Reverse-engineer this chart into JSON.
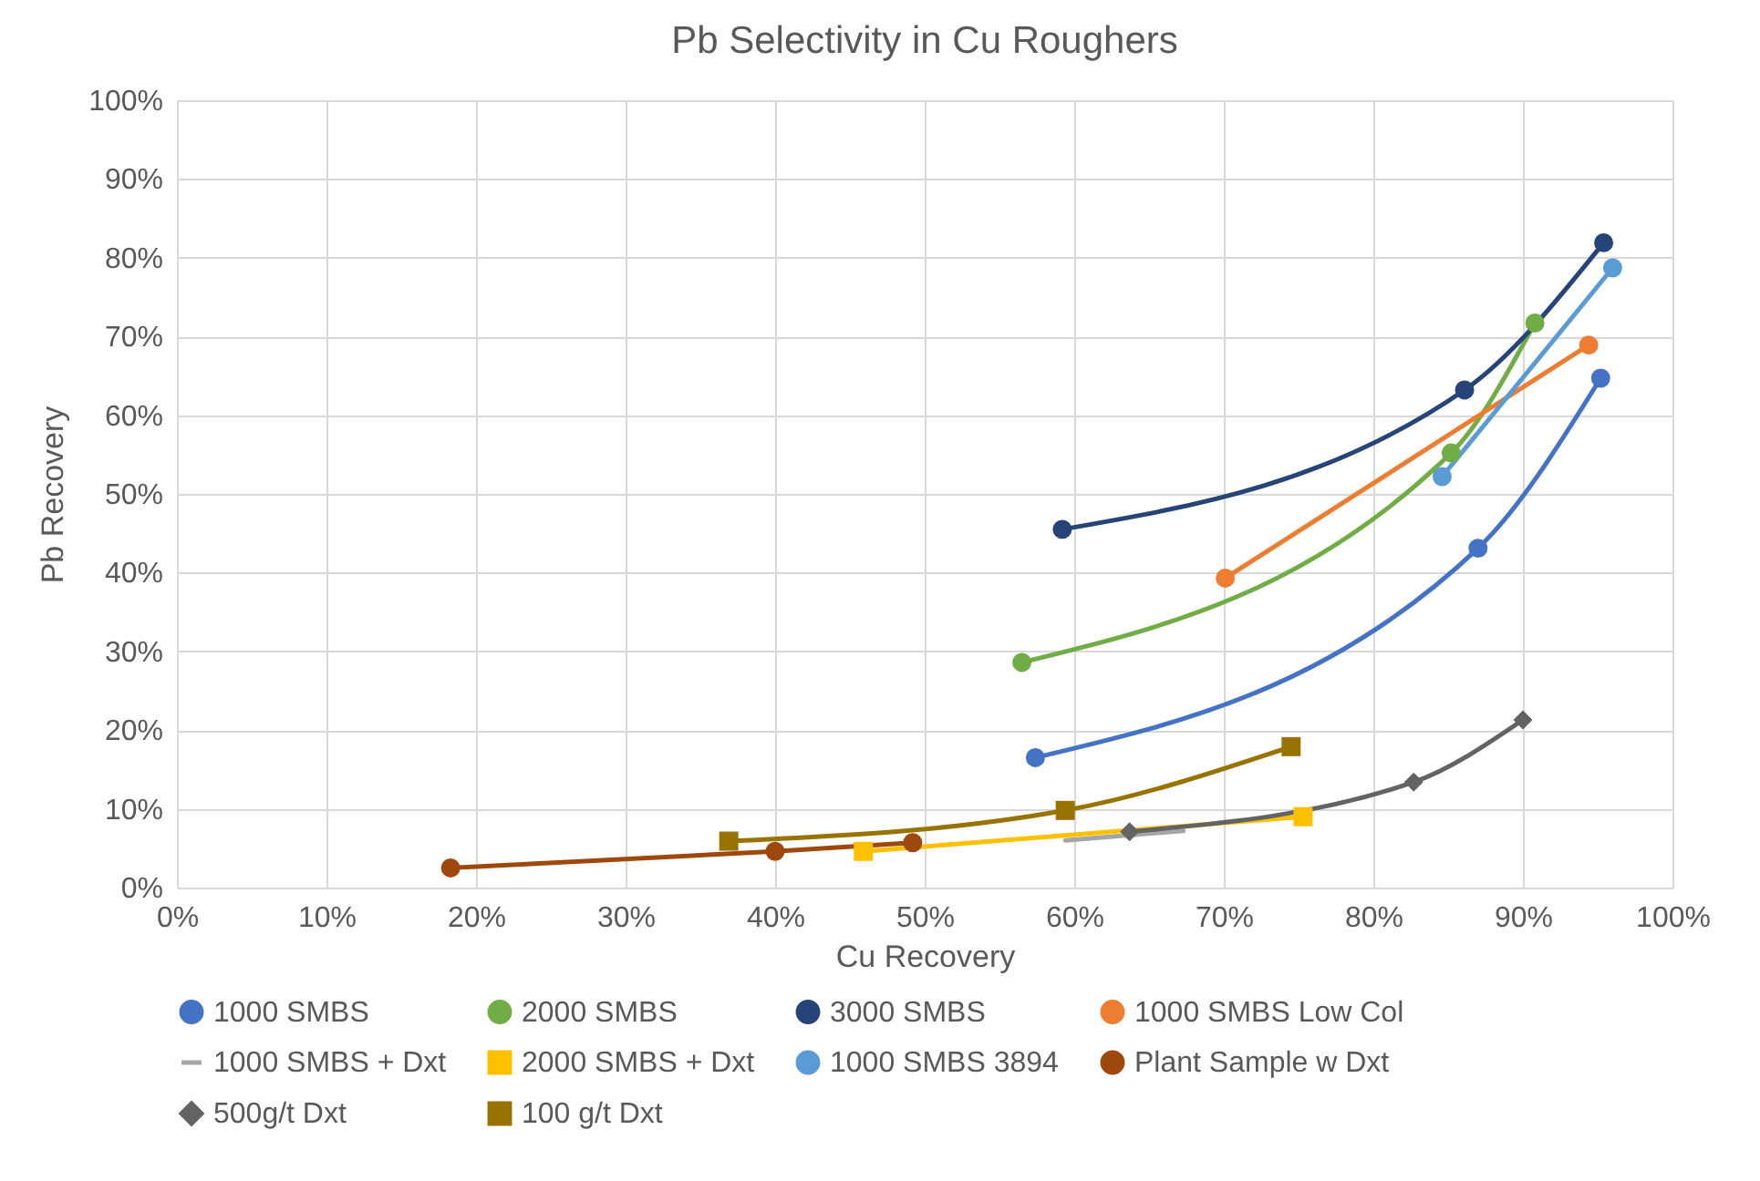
{
  "chart_data": {
    "type": "line",
    "title": "Pb Selectivity in Cu Roughers",
    "xlabel": "Cu Recovery",
    "ylabel": "Pb Recovery",
    "xlim": [
      0,
      100
    ],
    "ylim": [
      0,
      100
    ],
    "xticks": [
      {
        "value": 0,
        "label": "0%"
      },
      {
        "value": 10,
        "label": "10%"
      },
      {
        "value": 20,
        "label": "20%"
      },
      {
        "value": 30,
        "label": "30%"
      },
      {
        "value": 40,
        "label": "40%"
      },
      {
        "value": 50,
        "label": "50%"
      },
      {
        "value": 60,
        "label": "60%"
      },
      {
        "value": 70,
        "label": "70%"
      },
      {
        "value": 80,
        "label": "80%"
      },
      {
        "value": 90,
        "label": "90%"
      },
      {
        "value": 100,
        "label": "100%"
      }
    ],
    "yticks": [
      {
        "value": 0,
        "label": "0%"
      },
      {
        "value": 10,
        "label": "10%"
      },
      {
        "value": 20,
        "label": "20%"
      },
      {
        "value": 30,
        "label": "30%"
      },
      {
        "value": 40,
        "label": "40%"
      },
      {
        "value": 50,
        "label": "50%"
      },
      {
        "value": 60,
        "label": "60%"
      },
      {
        "value": 70,
        "label": "70%"
      },
      {
        "value": 80,
        "label": "80%"
      },
      {
        "value": 90,
        "label": "90%"
      },
      {
        "value": 100,
        "label": "100%"
      }
    ],
    "grid": true,
    "legend": "bottom",
    "line_style": "solid",
    "series": [
      {
        "name": "1000 SMBS",
        "color": "#4472c4",
        "marker": "circle",
        "x": [
          57.4,
          87.0,
          95.2
        ],
        "values": [
          16.5,
          43.1,
          64.7
        ]
      },
      {
        "name": "2000 SMBS",
        "color": "#70ad47",
        "marker": "circle",
        "x": [
          56.5,
          85.2,
          90.8
        ],
        "values": [
          28.6,
          55.2,
          71.7
        ]
      },
      {
        "name": "3000 SMBS",
        "color": "#264478",
        "marker": "circle",
        "x": [
          59.2,
          86.1,
          95.4
        ],
        "values": [
          45.5,
          63.2,
          81.9
        ]
      },
      {
        "name": "1000 SMBS Low Col",
        "color": "#ed7d31",
        "marker": "circle",
        "x": [
          70.1,
          94.4
        ],
        "values": [
          39.3,
          68.9
        ]
      },
      {
        "name": "1000 SMBS + Dxt",
        "color": "#a5a5a5",
        "marker": "none",
        "x": [
          59.4,
          67.3
        ],
        "values": [
          6.0,
          7.2
        ]
      },
      {
        "name": "2000 SMBS + Dxt",
        "color": "#ffc000",
        "marker": "square",
        "x": [
          45.9,
          75.3
        ],
        "values": [
          4.6,
          9.0
        ]
      },
      {
        "name": "1000 SMBS 3894",
        "color": "#5b9bd5",
        "marker": "circle",
        "x": [
          84.6,
          96.0
        ],
        "values": [
          52.2,
          78.7
        ]
      },
      {
        "name": "Plant Sample w Dxt",
        "color": "#9e480e",
        "marker": "circle",
        "x": [
          18.3,
          40.0,
          49.2
        ],
        "values": [
          2.5,
          4.6,
          5.7
        ]
      },
      {
        "name": "500g/t Dxt",
        "color": "#636363",
        "marker": "diamond",
        "x": [
          63.7,
          82.7,
          90.0
        ],
        "values": [
          7.1,
          13.4,
          21.3
        ]
      },
      {
        "name": "100 g/t Dxt",
        "color": "#997300",
        "marker": "square",
        "x": [
          36.9,
          59.4,
          74.5
        ],
        "values": [
          5.9,
          9.8,
          17.9
        ]
      }
    ]
  }
}
